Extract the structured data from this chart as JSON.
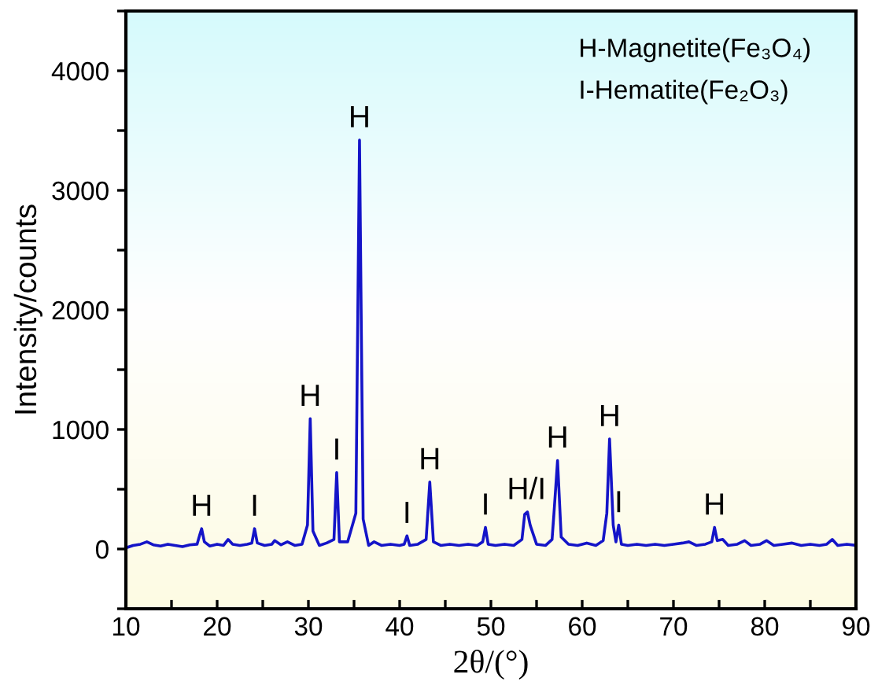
{
  "chart_data": {
    "type": "line",
    "xlabel": "2θ/(°)",
    "ylabel": "Intensity/counts",
    "xlim": [
      10,
      90
    ],
    "ylim": [
      -500,
      4500
    ],
    "xticks": [
      10,
      {
        "value": 15,
        "label": null
      },
      20,
      {
        "value": 25,
        "label": null
      },
      30,
      {
        "value": 35,
        "label": null
      },
      40,
      {
        "value": 45,
        "label": null
      },
      50,
      {
        "value": 55,
        "label": null
      },
      60,
      {
        "value": 65,
        "label": null
      },
      70,
      {
        "value": 75,
        "label": null
      },
      80,
      {
        "value": 85,
        "label": null
      },
      90
    ],
    "yticks": [
      {
        "value": -500,
        "label": null
      },
      0,
      {
        "value": 500,
        "label": null
      },
      1000,
      {
        "value": 1500,
        "label": null
      },
      2000,
      {
        "value": 2500,
        "label": null
      },
      3000,
      {
        "value": 3500,
        "label": null
      },
      4000,
      {
        "value": 4500,
        "label": null
      }
    ],
    "grid": false,
    "legend": false,
    "marker": "none",
    "line_style": "solid",
    "series": [
      {
        "color": "#1414c8",
        "x": [
          10,
          10.8,
          11.6,
          12.3,
          13,
          13.8,
          14.6,
          15.4,
          16.2,
          17,
          17.8,
          18.1,
          18.3,
          18.6,
          19.2,
          20,
          20.7,
          21.2,
          21.7,
          22.5,
          23.3,
          23.8,
          24.1,
          24.4,
          25.2,
          26,
          26.3,
          27,
          27.7,
          28.5,
          29.3,
          29.9,
          30.2,
          30.5,
          31.2,
          32,
          32.8,
          33.1,
          33.4,
          34.3,
          35.2,
          35.6,
          36,
          36.6,
          37.2,
          38,
          39,
          40,
          40.5,
          40.8,
          41.1,
          42,
          42.9,
          43.3,
          43.7,
          44.5,
          45.5,
          46.5,
          47.5,
          48.5,
          49.1,
          49.4,
          49.7,
          50.5,
          51.5,
          52.5,
          53.4,
          53.7,
          54,
          54.3,
          55,
          56,
          56.7,
          56.9,
          57.3,
          57.7,
          58.5,
          59.5,
          60.5,
          61.5,
          62.3,
          62.7,
          63,
          63.4,
          63.7,
          64,
          64.3,
          65,
          66,
          67,
          68,
          69,
          70,
          71,
          71.7,
          72.5,
          73.5,
          74.2,
          74.5,
          74.8,
          75.4,
          76,
          77,
          77.8,
          78.5,
          79.5,
          80.2,
          81,
          82,
          83,
          84,
          85,
          86,
          86.8,
          87.4,
          88,
          89,
          90
        ],
        "values": [
          10,
          30,
          40,
          60,
          35,
          25,
          40,
          30,
          20,
          35,
          40,
          120,
          170,
          60,
          25,
          40,
          30,
          80,
          40,
          30,
          40,
          50,
          170,
          50,
          30,
          40,
          70,
          35,
          60,
          30,
          40,
          200,
          1090,
          150,
          30,
          50,
          80,
          640,
          60,
          60,
          300,
          3420,
          250,
          30,
          60,
          30,
          40,
          30,
          40,
          110,
          30,
          40,
          80,
          560,
          60,
          30,
          40,
          30,
          40,
          30,
          60,
          180,
          40,
          30,
          40,
          30,
          80,
          290,
          310,
          200,
          40,
          30,
          80,
          290,
          740,
          100,
          40,
          30,
          50,
          30,
          70,
          300,
          920,
          200,
          60,
          200,
          40,
          30,
          40,
          30,
          40,
          30,
          40,
          50,
          60,
          30,
          40,
          60,
          180,
          70,
          80,
          30,
          40,
          70,
          30,
          40,
          70,
          30,
          40,
          50,
          30,
          40,
          30,
          40,
          80,
          30,
          40,
          30
        ]
      }
    ],
    "annotations": [
      "H-Magnetite(Fe₃O₄)",
      "I-Hematite(Fe₂O₃)",
      {
        "text": "H",
        "x": 18.3,
        "y": 170
      },
      {
        "text": "I",
        "x": 24.1,
        "y": 170
      },
      {
        "text": "H",
        "x": 30.2,
        "y": 1090
      },
      {
        "text": "I",
        "x": 33.1,
        "y": 640
      },
      {
        "text": "H",
        "x": 35.6,
        "y": 3420
      },
      {
        "text": "I",
        "x": 40.8,
        "y": 110
      },
      {
        "text": "H",
        "x": 43.3,
        "y": 560
      },
      {
        "text": "I",
        "x": 49.4,
        "y": 180
      },
      {
        "text": "H/I",
        "x": 53.9,
        "y": 310
      },
      {
        "text": "H",
        "x": 57.3,
        "y": 740
      },
      {
        "text": "H",
        "x": 63,
        "y": 920
      },
      {
        "text": "I",
        "x": 64,
        "y": 200
      },
      {
        "text": "H",
        "x": 74.5,
        "y": 180
      }
    ]
  }
}
